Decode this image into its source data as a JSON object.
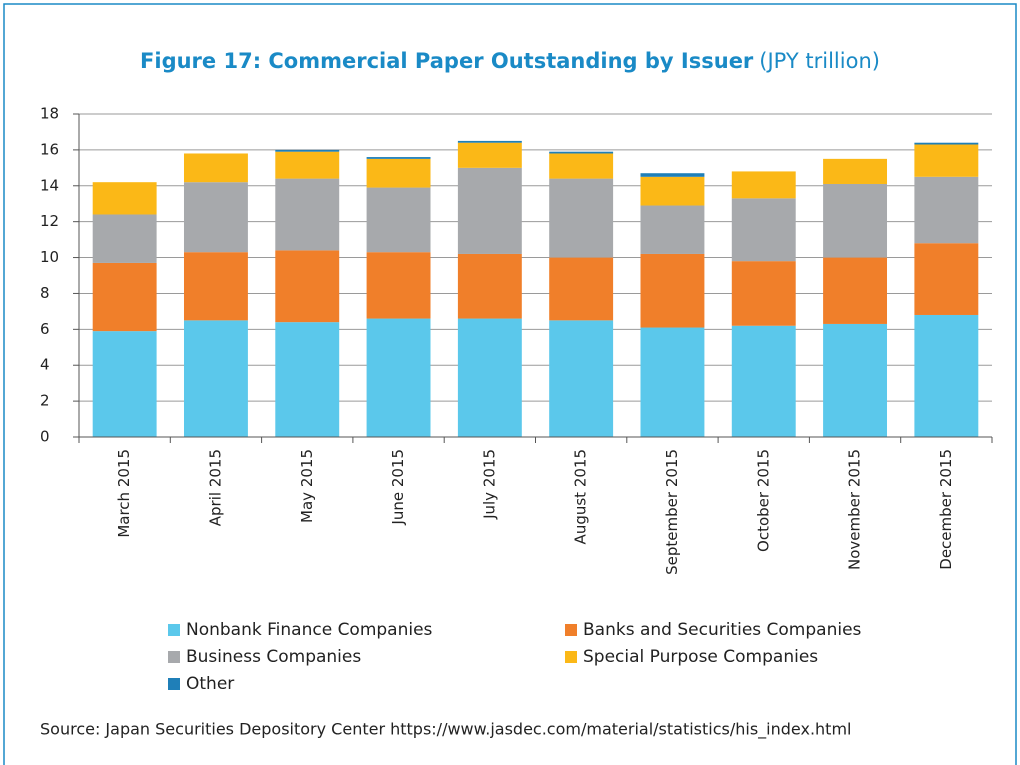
{
  "chart_data": {
    "type": "stacked_bar",
    "title": "Figure 17: Commercial Paper Outstanding by Issuer",
    "subtitle": "(JPY trillion)",
    "categories": [
      "March 2015",
      "April 2015",
      "May 2015",
      "June 2015",
      "July 2015",
      "August 2015",
      "September 2015",
      "October 2015",
      "November 2015",
      "December 2015"
    ],
    "series": [
      {
        "name": "Nonbank Finance Companies",
        "color": "#5bc8eb",
        "values": [
          5.9,
          6.5,
          6.4,
          6.6,
          6.6,
          6.5,
          6.1,
          6.2,
          6.3,
          6.8
        ]
      },
      {
        "name": "Banks and Securities Companies",
        "color": "#f07f2a",
        "values": [
          3.8,
          3.8,
          4.0,
          3.7,
          3.6,
          3.5,
          4.1,
          3.6,
          3.7,
          4.0
        ]
      },
      {
        "name": "Business Companies",
        "color": "#a7a9ac",
        "values": [
          2.7,
          3.9,
          4.0,
          3.6,
          4.8,
          4.4,
          2.7,
          3.5,
          4.1,
          3.7
        ]
      },
      {
        "name": "Special Purpose Companies",
        "color": "#fbb817",
        "values": [
          1.8,
          1.6,
          1.5,
          1.6,
          1.4,
          1.4,
          1.6,
          1.5,
          1.4,
          1.8
        ]
      },
      {
        "name": "Other",
        "color": "#1f7fb8",
        "values": [
          0,
          0,
          0.1,
          0.1,
          0.1,
          0.1,
          0.2,
          0,
          0,
          0.1
        ]
      }
    ],
    "ylim": [
      0,
      18
    ],
    "yticks": [
      0,
      2,
      4,
      6,
      8,
      10,
      12,
      14,
      16,
      18
    ],
    "grid": true,
    "source": "Source: Japan Securities Depository Center  https://www.jasdec.com/material/statistics/his_index.html"
  }
}
